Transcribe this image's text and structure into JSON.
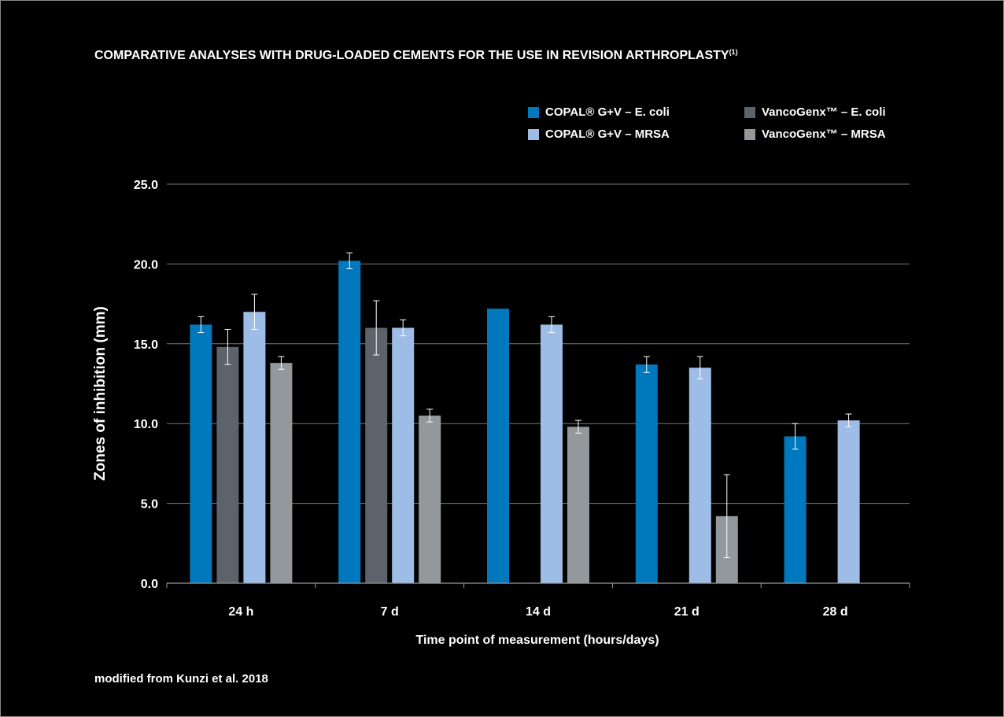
{
  "title": "COMPARATIVE ANALYSES WITH DRUG-LOADED CEMENTS FOR THE USE IN REVISION ARTHROPLASTY",
  "title_ref": "(1)",
  "source_note": "modified from Kunzi et al. 2018",
  "legend": [
    {
      "label": "COPAL® G+V – E. coli",
      "color": "#0078be"
    },
    {
      "label": "VancoGenx™ – E. coli",
      "color": "#5c636b"
    },
    {
      "label": "COPAL® G+V – MRSA",
      "color": "#9dbde6"
    },
    {
      "label": "VancoGenx™ – MRSA",
      "color": "#92989c"
    }
  ],
  "chart_data": {
    "type": "bar",
    "title": "COMPARATIVE ANALYSES WITH DRUG-LOADED CEMENTS FOR THE USE IN REVISION ARTHROPLASTY",
    "xlabel": "Time point of measurement (hours/days)",
    "ylabel": "Zones of inhibition (mm)",
    "ylim": [
      0,
      25
    ],
    "yticks": [
      "0.0",
      "5.0",
      "10.0",
      "15.0",
      "20.0",
      "25.0"
    ],
    "categories": [
      "24 h",
      "7 d",
      "14 d",
      "21 d",
      "28 d"
    ],
    "grid": true,
    "legend_position": "top-right",
    "series": [
      {
        "name": "COPAL® G+V – E. coli",
        "color": "#0078be",
        "values": [
          16.2,
          20.2,
          17.2,
          13.7,
          9.2
        ],
        "errors": [
          0.5,
          0.5,
          null,
          0.5,
          0.8
        ]
      },
      {
        "name": "VancoGenx™ – E. coli",
        "color": "#5c636b",
        "values": [
          14.8,
          16.0,
          null,
          null,
          null
        ],
        "errors": [
          1.1,
          1.7,
          null,
          null,
          null
        ]
      },
      {
        "name": "COPAL® G+V – MRSA",
        "color": "#9dbde6",
        "values": [
          17.0,
          16.0,
          16.2,
          13.5,
          10.2
        ],
        "errors": [
          1.1,
          0.5,
          0.5,
          0.7,
          0.4
        ]
      },
      {
        "name": "VancoGenx™ – MRSA",
        "color": "#92989c",
        "values": [
          13.8,
          10.5,
          9.8,
          4.2,
          null
        ],
        "errors": [
          0.4,
          0.4,
          0.4,
          2.6,
          null
        ]
      }
    ]
  }
}
